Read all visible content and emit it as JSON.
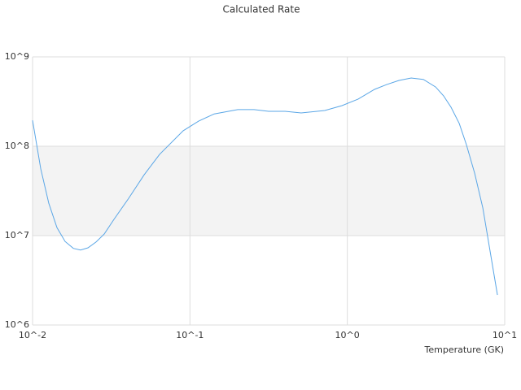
{
  "chart_data": {
    "type": "line",
    "title": "Calculated Rate",
    "x_label": "Temperature (GK)",
    "xlog": true,
    "ylog": true,
    "grid": true,
    "band_color": "#f3f3f3",
    "xlim": [
      0.01,
      10
    ],
    "ylim": [
      1000000,
      1000000000
    ],
    "xticks": [
      {
        "value": 0.01,
        "label": "10^-2"
      },
      {
        "value": 0.1,
        "label": "10^-1"
      },
      {
        "value": 1,
        "label": "10^0"
      },
      {
        "value": 10,
        "label": "10^1"
      }
    ],
    "yticks": [
      {
        "value": 1000000,
        "label": "10^6"
      },
      {
        "value": 10000000,
        "label": "10^7"
      },
      {
        "value": 100000000,
        "label": "10^8"
      },
      {
        "value": 1000000000,
        "label": "10^9"
      }
    ],
    "x": [
      0.01,
      0.01127,
      0.01268,
      0.01429,
      0.0161,
      0.01816,
      0.02018,
      0.0225,
      0.02535,
      0.0285,
      0.0329,
      0.0407,
      0.0512,
      0.0641,
      0.0906,
      0.1135,
      0.1426,
      0.2014,
      0.2553,
      0.316,
      0.402,
      0.509,
      0.719,
      0.925,
      1.172,
      1.489,
      1.778,
      2.128,
      2.547,
      3.04,
      3.64,
      4.09,
      4.56,
      5.14,
      5.71,
      6.44,
      7.26,
      8.99
    ],
    "series": [
      {
        "color": "#5aa6e6",
        "values": [
          195000000,
          56000000,
          23000000,
          12300000,
          8600000,
          7200000,
          6900000,
          7300000,
          8500000,
          10400000,
          15200000,
          26000000,
          48000000,
          81000000,
          149000000,
          191000000,
          230000000,
          257000000,
          257000000,
          246000000,
          246000000,
          236000000,
          251000000,
          285000000,
          337000000,
          433000000,
          490000000,
          545000000,
          580000000,
          560000000,
          460000000,
          366000000,
          273000000,
          180000000,
          104000000,
          50000000,
          20400000,
          2170000
        ]
      }
    ]
  }
}
